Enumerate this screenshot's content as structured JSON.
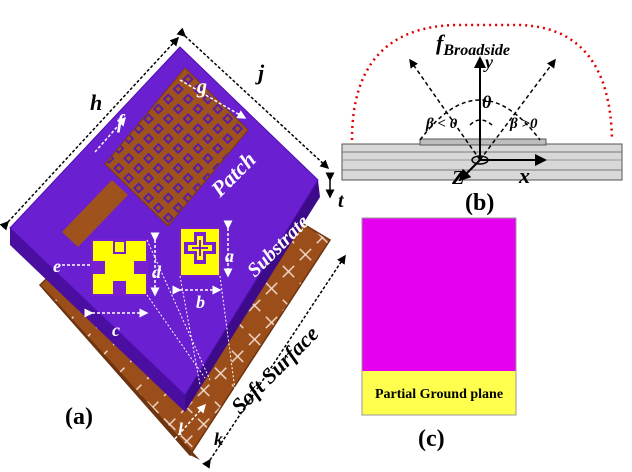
{
  "colors": {
    "substrate": "#6a1fd0",
    "substrate_side": "#4a0fa0",
    "patch": "#a0521d",
    "soft_surface": "#9b4d1a",
    "unit_cell": "#ffff00",
    "unit_cell_slot": "#7a1fd0",
    "ground_pink": "#e600f0",
    "ground_yellow": "#ffff4d",
    "broadside_curve": "#e00000"
  },
  "panel_a": {
    "caption": "(a)",
    "labels": {
      "h": "h",
      "j": "j",
      "f": "f",
      "g": "g",
      "a": "a",
      "b": "b",
      "c": "c",
      "d": "d",
      "e": "e",
      "t": "t",
      "l": "l",
      "k": "k"
    },
    "text": {
      "patch": "Patch",
      "substrate": "Substrate",
      "soft_surface": "Soft Surface"
    }
  },
  "panel_b": {
    "caption": "(b)",
    "f_main": "f",
    "f_sub": "Broadside",
    "y": "y",
    "x": "x",
    "z": "Z",
    "theta": "θ",
    "beta_neg": "β < 0",
    "beta_pos": "β >0"
  },
  "panel_c": {
    "caption": "(c)",
    "ground_label": "Partial Ground plane"
  }
}
